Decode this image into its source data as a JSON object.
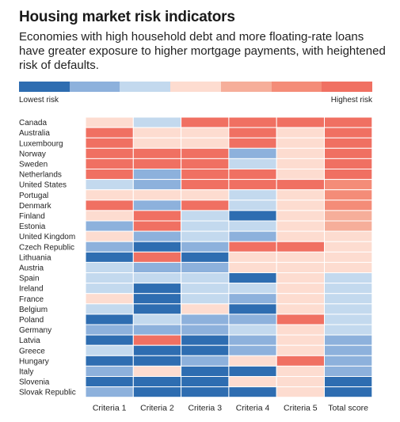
{
  "header": {
    "title": "Housing market risk indicators",
    "subtitle": "Economies with high household debt and more floating-rate loans have greater exposure to higher mortgage payments, with heightened risk of defaults."
  },
  "legend": {
    "low_label": "Lowest risk",
    "high_label": "Highest risk",
    "palette": [
      "#2e6db1",
      "#8db1dc",
      "#c3d9ee",
      "#fddcd0",
      "#f6ae9a",
      "#f48c78",
      "#f07062"
    ]
  },
  "chart_data": {
    "type": "heatmap",
    "title": "Housing market risk indicators",
    "columns": [
      "Criteria 1",
      "Criteria 2",
      "Criteria 3",
      "Criteria 4",
      "Criteria 5",
      "Total score"
    ],
    "rows": [
      "Canada",
      "Australia",
      "Luxembourg",
      "Norway",
      "Sweden",
      "Netherlands",
      "United States",
      "Portugal",
      "Denmark",
      "Finland",
      "Estonia",
      "United Kingdom",
      "Czech Republic",
      "Lithuania",
      "Austria",
      "Spain",
      "Ireland",
      "France",
      "Belgium",
      "Poland",
      "Germany",
      "Latvia",
      "Greece",
      "Hungary",
      "Italy",
      "Slovenia",
      "Slovak Republic"
    ],
    "scale_min": 0,
    "scale_max": 6,
    "values": [
      [
        3,
        2,
        6,
        6,
        6,
        6
      ],
      [
        6,
        3,
        3,
        6,
        3,
        6
      ],
      [
        6,
        3,
        3,
        6,
        3,
        6
      ],
      [
        6,
        6,
        6,
        1,
        3,
        6
      ],
      [
        6,
        6,
        6,
        2,
        3,
        6
      ],
      [
        6,
        1,
        6,
        6,
        3,
        6
      ],
      [
        2,
        1,
        6,
        6,
        6,
        5
      ],
      [
        3,
        3,
        3,
        2,
        3,
        5
      ],
      [
        6,
        1,
        6,
        2,
        3,
        5
      ],
      [
        3,
        6,
        2,
        0,
        3,
        4
      ],
      [
        1,
        6,
        2,
        2,
        3,
        4
      ],
      [
        3,
        1,
        2,
        1,
        3,
        3
      ],
      [
        1,
        0,
        1,
        6,
        6,
        3
      ],
      [
        0,
        6,
        0,
        3,
        3,
        3
      ],
      [
        2,
        1,
        1,
        3,
        3,
        3
      ],
      [
        2,
        2,
        2,
        0,
        3,
        2
      ],
      [
        2,
        0,
        2,
        2,
        3,
        2
      ],
      [
        3,
        0,
        2,
        1,
        3,
        2
      ],
      [
        2,
        0,
        3,
        0,
        3,
        2
      ],
      [
        0,
        2,
        1,
        1,
        6,
        2
      ],
      [
        1,
        1,
        1,
        2,
        3,
        2
      ],
      [
        0,
        6,
        0,
        1,
        3,
        1
      ],
      [
        2,
        0,
        0,
        1,
        3,
        1
      ],
      [
        0,
        0,
        1,
        3,
        6,
        1
      ],
      [
        1,
        3,
        0,
        0,
        3,
        1
      ],
      [
        0,
        0,
        0,
        3,
        3,
        0
      ],
      [
        1,
        0,
        0,
        0,
        3,
        0
      ]
    ]
  }
}
